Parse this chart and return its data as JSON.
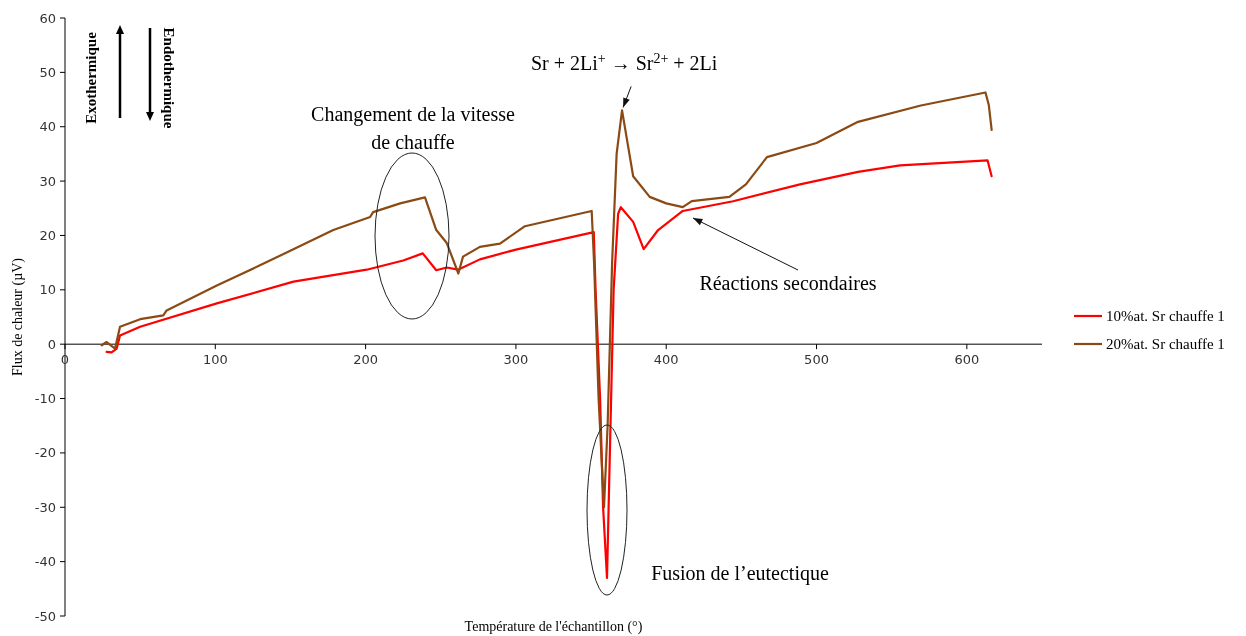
{
  "chart_data": {
    "type": "line",
    "xlabel": "Température de l'échantillon (°)",
    "ylabel": "Flux de chaleur (µV)",
    "xlim": [
      0,
      650
    ],
    "xticks": [
      0,
      100,
      200,
      300,
      400,
      500,
      600
    ],
    "ylim": [
      -50,
      60
    ],
    "yticks": [
      -50,
      -40,
      -30,
      -20,
      -10,
      0,
      10,
      20,
      30,
      40,
      50,
      60
    ],
    "grid": false,
    "legend": "right",
    "marker": "none",
    "line_style": "solid",
    "annotations": [
      "Changement de la vitesse de chauffe",
      {
        "text": "Sr + 2Li$^{+}$ → Sr$^{2+}$ + 2Li",
        "x": 370,
        "y": 43
      },
      "Réactions secondaires",
      "Fusion de l’eutectique",
      "Exothermique",
      "Endothermique"
    ],
    "series": [
      {
        "name": "10%at. Sr chauffe 1",
        "color": "#ff0000",
        "x": [
          27.7,
          31,
          34.4,
          36.6,
          50,
          101,
          152,
          200.7,
          225,
          238,
          247,
          254,
          261.5,
          276,
          300,
          351.8,
          353,
          356,
          358,
          360.6,
          362.5,
          365,
          368,
          369.8,
          378,
          385,
          394.6,
          411,
          444.5,
          489,
          527.6,
          555.6,
          613.8,
          616.5
        ],
        "values": [
          -1.4,
          -1.5,
          -0.8,
          1.6,
          3.2,
          7.5,
          11.5,
          13.7,
          15.4,
          16.7,
          13.6,
          14.1,
          13.7,
          15.6,
          17.4,
          20.6,
          10,
          -10,
          -30,
          -43,
          -20,
          10,
          24,
          25.2,
          22.5,
          17.5,
          21,
          24.5,
          26.3,
          29.4,
          31.7,
          32.9,
          33.8,
          30.9
        ]
      },
      {
        "name": "20%at. Sr chauffe 1",
        "color": "#8b4a14",
        "x": [
          24.4,
          27.7,
          33.3,
          36.6,
          50,
          65.4,
          67.6,
          101,
          129.7,
          178.5,
          203,
          205,
          223,
          239.5,
          247,
          254,
          261.7,
          264.8,
          276,
          289.4,
          306,
          350.4,
          352,
          355,
          358.6,
          361,
          364,
          367,
          370.6,
          378,
          389,
          400,
          411,
          417,
          442,
          453,
          467,
          500,
          527.6,
          569.4,
          612.4,
          614.6,
          616.5
        ],
        "values": [
          -0.2,
          0.4,
          -0.8,
          3.2,
          4.6,
          5.3,
          6.2,
          10.8,
          14.5,
          21,
          23.4,
          24.3,
          25.9,
          27,
          21,
          18.6,
          13,
          16.1,
          17.9,
          18.5,
          21.7,
          24.5,
          15,
          -10,
          -30,
          -15,
          15,
          35,
          43,
          30.9,
          27.1,
          25.9,
          25.2,
          26.3,
          27.1,
          29.4,
          34.4,
          37,
          40.9,
          43.9,
          46.3,
          44,
          39.4
        ]
      }
    ]
  }
}
